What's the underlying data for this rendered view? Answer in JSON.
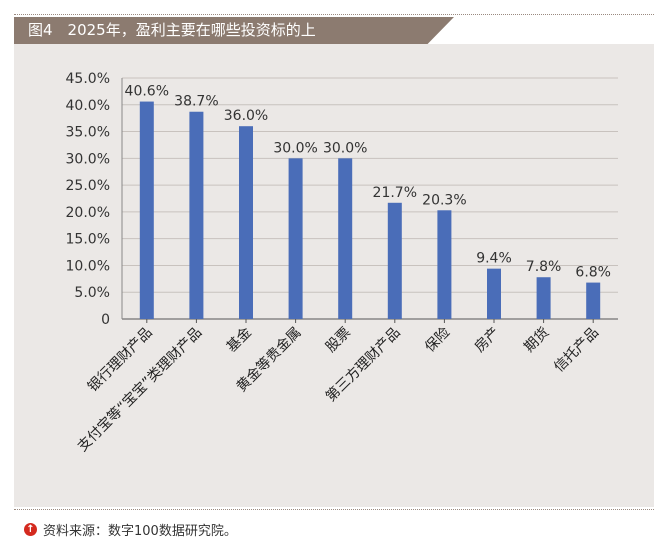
{
  "figure": {
    "title": "图4　2025年，盈利主要在哪些投资标的上",
    "source": "资料来源：数字100数据研究院。",
    "source_icon": "arrow-up-circle-icon"
  },
  "chart_data": {
    "type": "bar",
    "title": "图4　2025年，盈利主要在哪些投资标的上",
    "xlabel": "",
    "ylabel": "",
    "categories": [
      "银行理财产品",
      "支付宝等“宝宝”类理财产品",
      "基金",
      "黄金等贵金属",
      "股票",
      "第三方理财产品",
      "保险",
      "房产",
      "期货",
      "信托产品"
    ],
    "values": [
      40.6,
      38.7,
      36.0,
      30.0,
      30.0,
      21.7,
      20.3,
      9.4,
      7.8,
      6.8
    ],
    "value_labels": [
      "40.6%",
      "38.7%",
      "36.0%",
      "30.0%",
      "30.0%",
      "21.7%",
      "20.3%",
      "9.4%",
      "7.8%",
      "6.8%"
    ],
    "ylim": [
      0,
      45
    ],
    "yticks": [
      0,
      5,
      10,
      15,
      20,
      25,
      30,
      35,
      40,
      45
    ],
    "ytick_labels": [
      "0",
      "5.0%",
      "10.0%",
      "15.0%",
      "20.0%",
      "25.0%",
      "30.0%",
      "35.0%",
      "40.0%",
      "45.0%"
    ],
    "grid": true,
    "legend": "none",
    "colors": {
      "bar": "#4a6db8",
      "grid": "#c8c2be",
      "panel": "#ebe8e6",
      "title_bar": "#8c7b70"
    }
  }
}
